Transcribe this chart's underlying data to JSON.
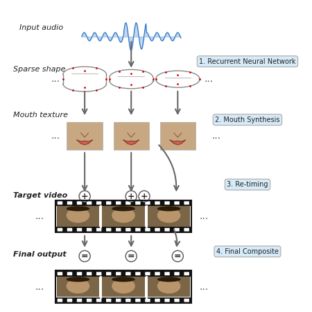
{
  "bg_color": "#ffffff",
  "steps": [
    {
      "label": "Input audio"
    },
    {
      "label": "Sparse shape"
    },
    {
      "label": "Mouth texture"
    },
    {
      "label": "Target video"
    },
    {
      "label": "Final output"
    }
  ],
  "annotations": [
    {
      "label": "1. Recurrent Neural Network"
    },
    {
      "label": "2. Mouth Synthesis"
    },
    {
      "label": "3. Re-timing"
    },
    {
      "label": "4. Final Composite"
    }
  ],
  "waveform_color": "#1565c0",
  "lip_color": "#888888",
  "lip_dot_color": "#cc0000",
  "arrow_color": "#666666",
  "annotation_bg": "#d6eaf8",
  "dots_color": "#555555",
  "skin_color": "#b8956a",
  "scene_color": "#7a6547",
  "film_color": "#111111"
}
